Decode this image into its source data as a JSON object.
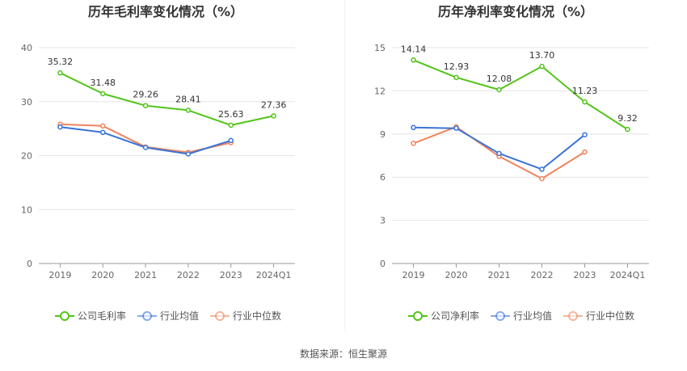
{
  "colors": {
    "company": "#52c41a",
    "industry_avg": "#3a74d8",
    "industry_median": "#f0845d",
    "grid": "#e6e6e6",
    "axis": "#999999"
  },
  "source_text": "数据来源：恒生聚源",
  "chart_data": [
    {
      "type": "line",
      "title": "历年毛利率变化情况（%）",
      "categories": [
        "2019",
        "2020",
        "2021",
        "2022",
        "2023",
        "2024Q1"
      ],
      "ylim": [
        0,
        40
      ],
      "yticks": [
        0,
        10,
        20,
        30,
        40
      ],
      "grid": true,
      "legend_position": "bottom",
      "series": [
        {
          "name": "公司毛利率",
          "color_key": "company",
          "labels": true,
          "values": [
            35.32,
            31.48,
            29.26,
            28.41,
            25.63,
            27.36
          ]
        },
        {
          "name": "行业均值",
          "color_key": "industry_avg",
          "labels": false,
          "values": [
            25.3,
            24.3,
            21.5,
            20.3,
            22.8,
            null
          ]
        },
        {
          "name": "行业中位数",
          "color_key": "industry_median",
          "labels": false,
          "values": [
            25.8,
            25.5,
            21.6,
            20.6,
            22.4,
            null
          ]
        }
      ]
    },
    {
      "type": "line",
      "title": "历年净利率变化情况（%）",
      "categories": [
        "2019",
        "2020",
        "2021",
        "2022",
        "2023",
        "2024Q1"
      ],
      "ylim": [
        0,
        15
      ],
      "yticks": [
        0,
        3,
        6,
        9,
        12,
        15
      ],
      "grid": true,
      "legend_position": "bottom",
      "series": [
        {
          "name": "公司净利率",
          "color_key": "company",
          "labels": true,
          "values": [
            14.14,
            12.93,
            12.08,
            13.7,
            11.23,
            9.32
          ]
        },
        {
          "name": "行业均值",
          "color_key": "industry_avg",
          "labels": false,
          "values": [
            9.45,
            9.4,
            7.65,
            6.55,
            8.95,
            null
          ]
        },
        {
          "name": "行业中位数",
          "color_key": "industry_median",
          "labels": false,
          "values": [
            8.35,
            9.5,
            7.45,
            5.9,
            7.75,
            null
          ]
        }
      ]
    }
  ]
}
